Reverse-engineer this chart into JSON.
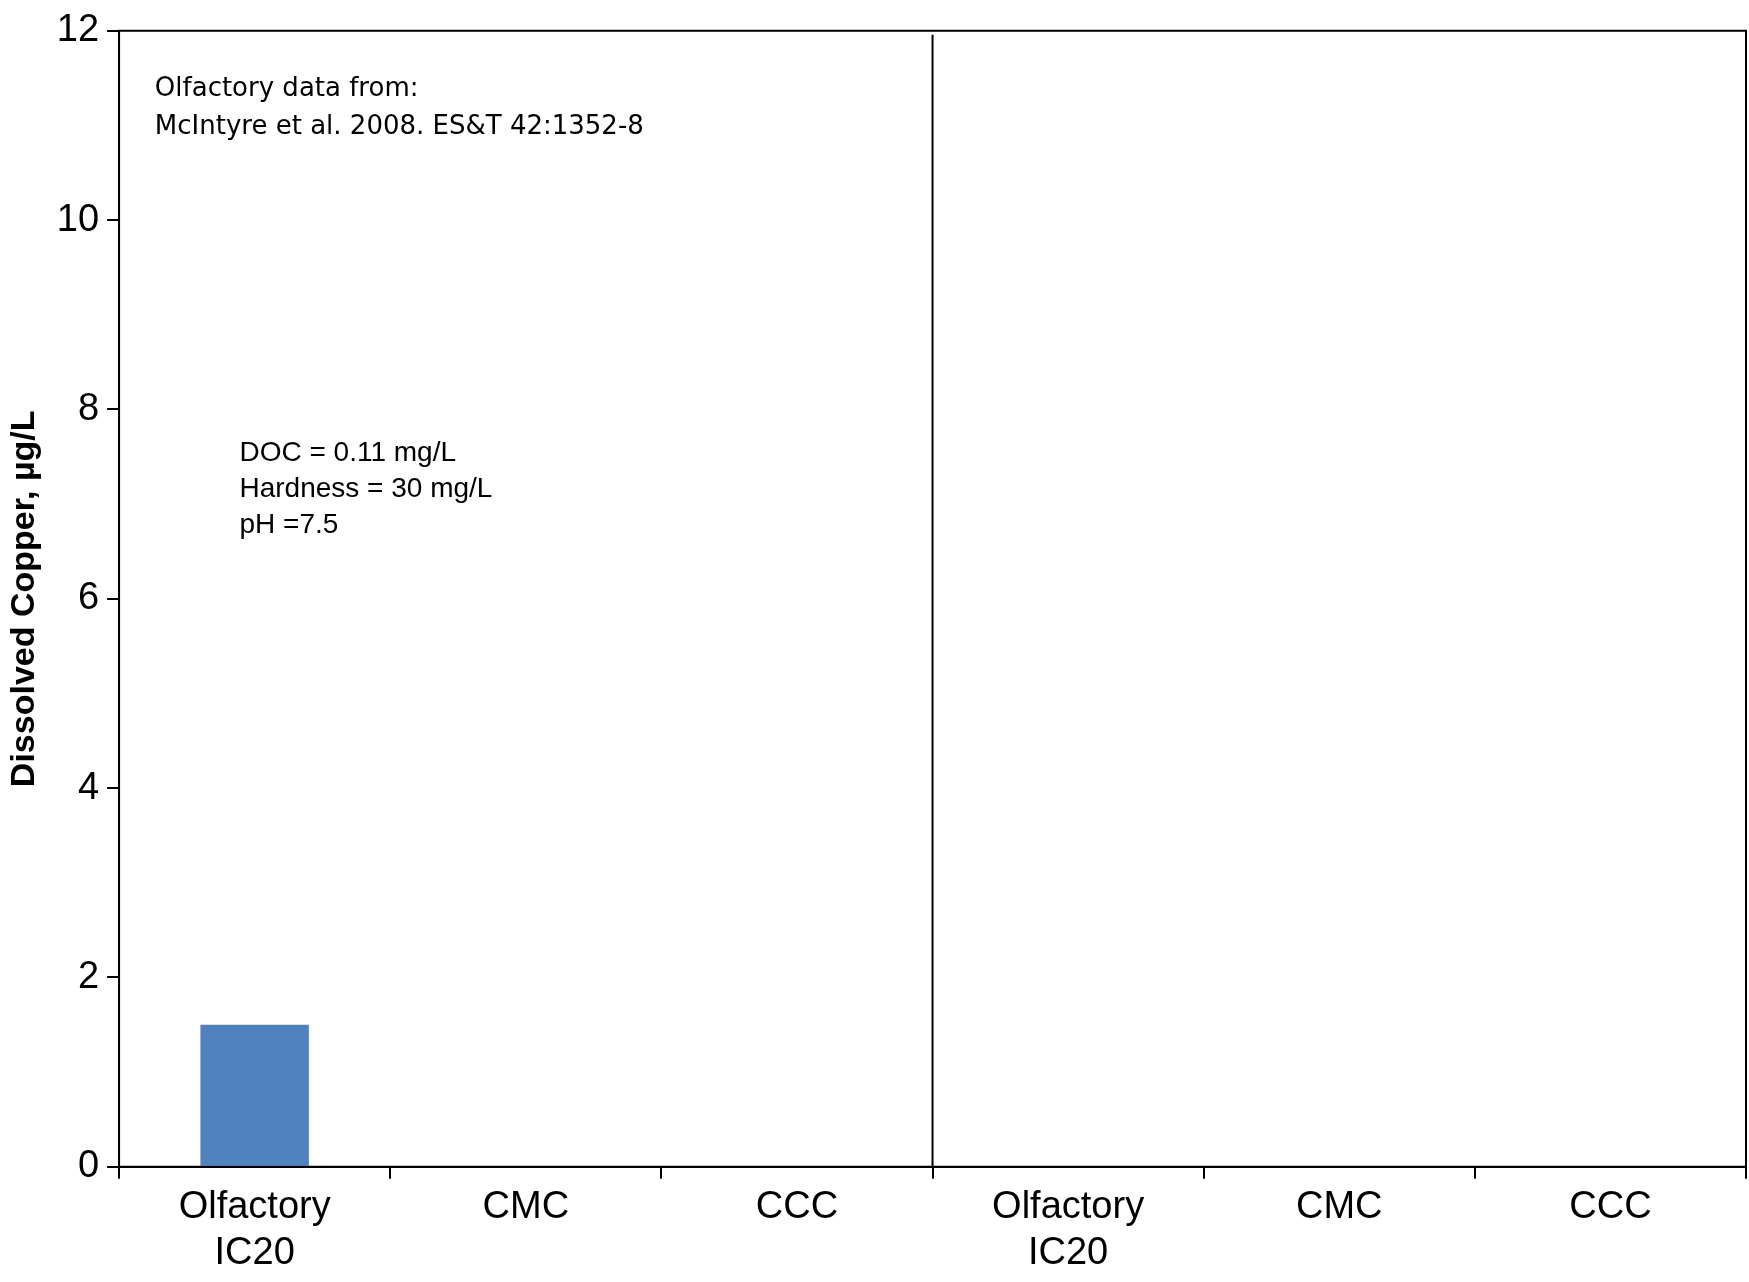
{
  "chart_data": {
    "type": "bar",
    "ylabel": "Dissolved Copper, µg/L",
    "categories": [
      "Olfactory\nIC20",
      "CMC",
      "CCC",
      "Olfactory\nIC20",
      "CMC",
      "CCC"
    ],
    "values": [
      1.5,
      null,
      null,
      null,
      null,
      null
    ],
    "color": "#4f81bd",
    "ylim": [
      0,
      12
    ],
    "yticks": [
      0,
      2,
      4,
      6,
      8,
      10,
      12
    ],
    "grid": false,
    "legend": false,
    "annotations": [
      "Olfactory data from:\nMcIntyre et al. 2008. ES&T 42:1352-8",
      "DOC = 0.11 mg/L\nHardness = 30 mg/L\npH =7.5"
    ]
  }
}
